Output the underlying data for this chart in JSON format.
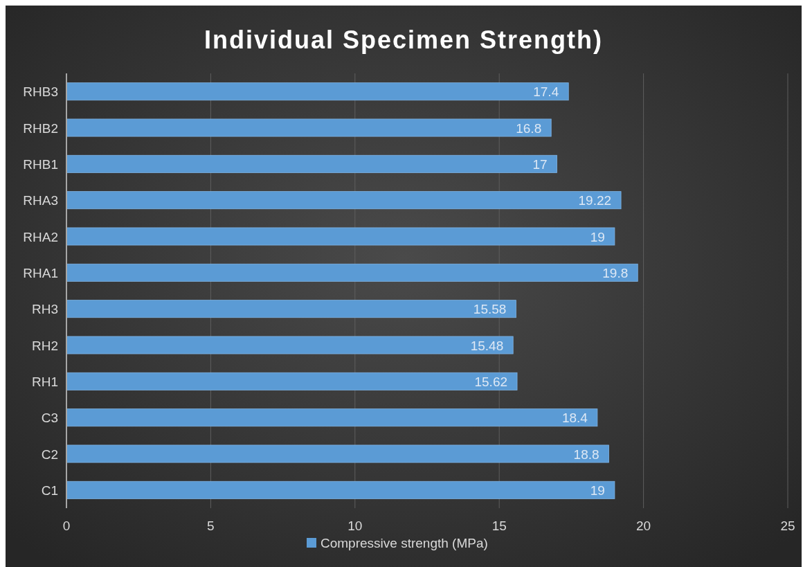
{
  "chart_data": {
    "type": "bar",
    "orientation": "horizontal",
    "title": "Individual Specimen Strength)",
    "categories": [
      "RHB3",
      "RHB2",
      "RHB1",
      "RHA3",
      "RHA2",
      "RHA1",
      "RH3",
      "RH2",
      "RH1",
      "C3",
      "C2",
      "C1"
    ],
    "series": [
      {
        "name": "Compressive strength (MPa)",
        "color": "#5b9bd5",
        "values": [
          17.4,
          16.8,
          17,
          19.22,
          19,
          19.8,
          15.58,
          15.48,
          15.62,
          18.4,
          18.8,
          19
        ]
      }
    ],
    "xlim": [
      0,
      25
    ],
    "xticks": [
      0,
      5,
      10,
      15,
      20,
      25
    ],
    "grid": "x",
    "legend": "bottom",
    "data_labels": true
  }
}
